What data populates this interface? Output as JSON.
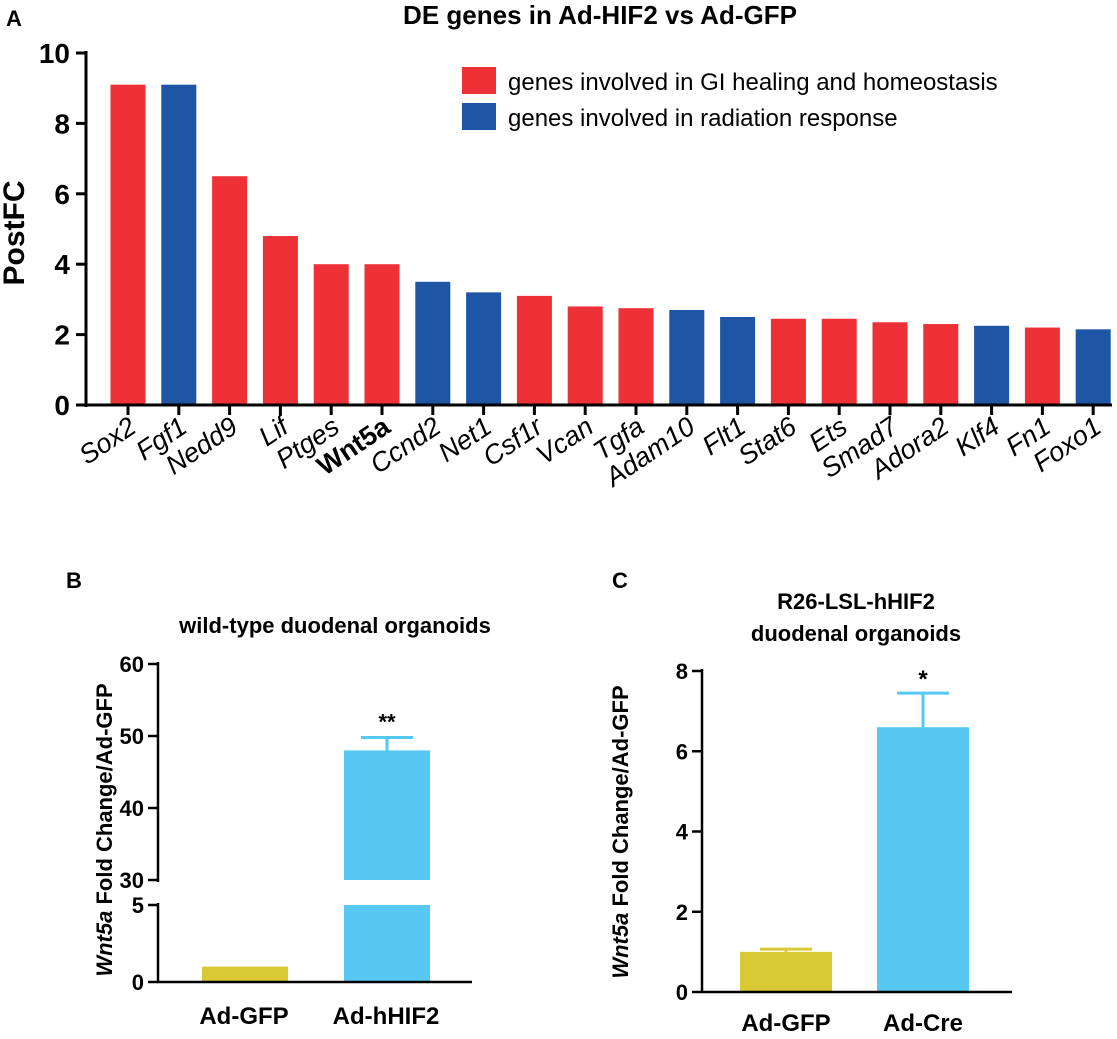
{
  "colors": {
    "red": "#ee3136",
    "blue": "#1f55a5",
    "yellow": "#d9c935",
    "cyan": "#56c8f2",
    "axis": "#000000"
  },
  "panels": {
    "a": "A",
    "b": "B",
    "c": "C"
  },
  "chart_data": [
    {
      "type": "bar",
      "panel": "A",
      "title": "DE genes in Ad-HIF2 vs Ad-GFP",
      "xlabel": "",
      "ylabel": "PostFC",
      "ylim": [
        0,
        10
      ],
      "yticks": [
        "0",
        "2",
        "4",
        "6",
        "8",
        "10"
      ],
      "categories": [
        "Sox2",
        "Fgf1",
        "Nedd9",
        "Lif",
        "Ptges",
        "Wnt5a",
        "Ccnd2",
        "Net1",
        "Csf1r",
        "Vcan",
        "Tgfa",
        "Adam10",
        "Flt1",
        "Stat6",
        "Ets",
        "Smad7",
        "Adora2",
        "Klf4",
        "Fn1",
        "Foxo1"
      ],
      "values": [
        9.1,
        9.1,
        6.5,
        4.8,
        4.0,
        4.0,
        3.5,
        3.2,
        3.1,
        2.8,
        2.75,
        2.7,
        2.5,
        2.45,
        2.45,
        2.35,
        2.3,
        2.25,
        2.2,
        2.15
      ],
      "groups": [
        "red",
        "blue",
        "red",
        "red",
        "red",
        "red",
        "blue",
        "blue",
        "red",
        "red",
        "red",
        "blue",
        "blue",
        "red",
        "red",
        "red",
        "red",
        "blue",
        "red",
        "blue"
      ],
      "bold_category": "Wnt5a",
      "legend": [
        {
          "key": "red",
          "label": "genes involved in GI healing and homeostasis"
        },
        {
          "key": "blue",
          "label": "genes involved in radiation response"
        }
      ],
      "legend_position": "top-right"
    },
    {
      "type": "bar",
      "panel": "B",
      "title": "wild-type duodenal organoids",
      "ylabel_gene": "Wnt5a",
      "ylabel_rest": " Fold Change/Ad-GFP",
      "axis_break": true,
      "ylim_lower": [
        0,
        5
      ],
      "ylim_upper": [
        30,
        60
      ],
      "yticks": [
        "0",
        "5",
        "30",
        "40",
        "50",
        "60"
      ],
      "categories": [
        "Ad-GFP",
        "Ad-hHIF2"
      ],
      "values": [
        1.0,
        48.0
      ],
      "errors": [
        0,
        1.8
      ],
      "colors": [
        "yellow",
        "cyan"
      ],
      "significance": [
        "",
        "**"
      ]
    },
    {
      "type": "bar",
      "panel": "C",
      "title_line1": "R26-LSL-hHIF2",
      "title_line2": "duodenal organoids",
      "ylabel_gene": "Wnt5a",
      "ylabel_rest": " Fold Change/Ad-GFP",
      "ylim": [
        0,
        8
      ],
      "yticks": [
        "0",
        "2",
        "4",
        "6",
        "8"
      ],
      "categories": [
        "Ad-GFP",
        "Ad-Cre"
      ],
      "values": [
        1.0,
        6.6
      ],
      "errors": [
        0.07,
        0.85
      ],
      "colors": [
        "yellow",
        "cyan"
      ],
      "significance": [
        "",
        "*"
      ]
    }
  ]
}
